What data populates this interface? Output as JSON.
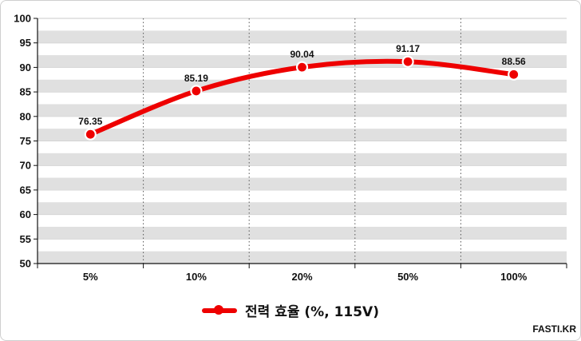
{
  "chart_data": {
    "type": "line",
    "categories": [
      "5%",
      "10%",
      "20%",
      "50%",
      "100%"
    ],
    "series": [
      {
        "name": "전력 효율 (%, 115V)",
        "values": [
          76.35,
          85.19,
          90.04,
          91.17,
          88.56
        ],
        "color": "#ee0000"
      }
    ],
    "data_labels": [
      "76.35",
      "85.19",
      "90.04",
      "91.17",
      "88.56"
    ],
    "ylim": [
      50,
      100
    ],
    "yticks": [
      50,
      55,
      60,
      65,
      70,
      75,
      80,
      85,
      90,
      95,
      100
    ],
    "smooth": true,
    "grid": "horizontal alternating bands, dotted vertical separators",
    "band_color": "#e0e0e0",
    "legend": "bottom-center"
  },
  "watermark": "FASTI.KR"
}
